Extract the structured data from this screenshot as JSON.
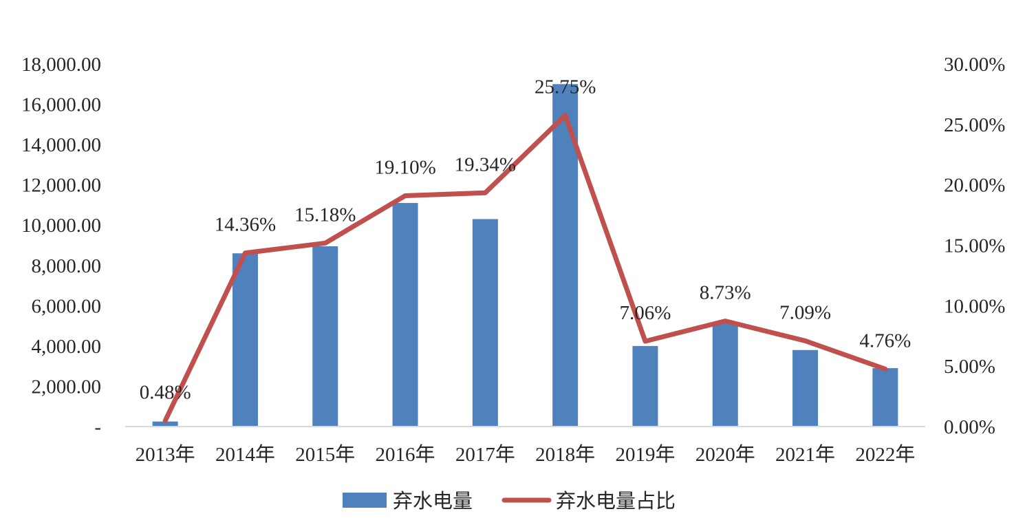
{
  "chart_data": {
    "type": "bar",
    "categories": [
      "2013年",
      "2014年",
      "2015年",
      "2016年",
      "2017年",
      "2018年",
      "2019年",
      "2020年",
      "2021年",
      "2022年"
    ],
    "series": [
      {
        "name": "弃水电量",
        "type": "bar",
        "axis": "left",
        "color": "#4f81bd",
        "values": [
          250,
          8600,
          8950,
          11100,
          10300,
          17000,
          4000,
          5200,
          3800,
          2900
        ]
      },
      {
        "name": "弃水电量占比",
        "type": "line",
        "axis": "right",
        "color": "#c0504d",
        "values": [
          0.48,
          14.36,
          15.18,
          19.1,
          19.34,
          25.75,
          7.06,
          8.73,
          7.09,
          4.76
        ],
        "data_labels": [
          "0.48%",
          "14.36%",
          "15.18%",
          "19.10%",
          "19.34%",
          "25.75%",
          "7.06%",
          "8.73%",
          "7.09%",
          "4.76%"
        ]
      }
    ],
    "y_left": {
      "min": 0,
      "max": 18000,
      "ticks": [
        0,
        2000,
        4000,
        6000,
        8000,
        10000,
        12000,
        14000,
        16000,
        18000
      ],
      "tick_labels": [
        "-",
        "2,000.00",
        "4,000.00",
        "6,000.00",
        "8,000.00",
        "10,000.00",
        "12,000.00",
        "14,000.00",
        "16,000.00",
        "18,000.00"
      ]
    },
    "y_right": {
      "min": 0,
      "max": 30,
      "ticks": [
        0,
        5,
        10,
        15,
        20,
        25,
        30
      ],
      "tick_labels": [
        "0.00%",
        "5.00%",
        "10.00%",
        "15.00%",
        "20.00%",
        "25.00%",
        "30.00%"
      ]
    },
    "title": "",
    "xlabel": "",
    "ylabel": "",
    "grid": false,
    "legend": {
      "position": "bottom",
      "entries": [
        "弃水电量",
        "弃水电量占比"
      ]
    }
  }
}
